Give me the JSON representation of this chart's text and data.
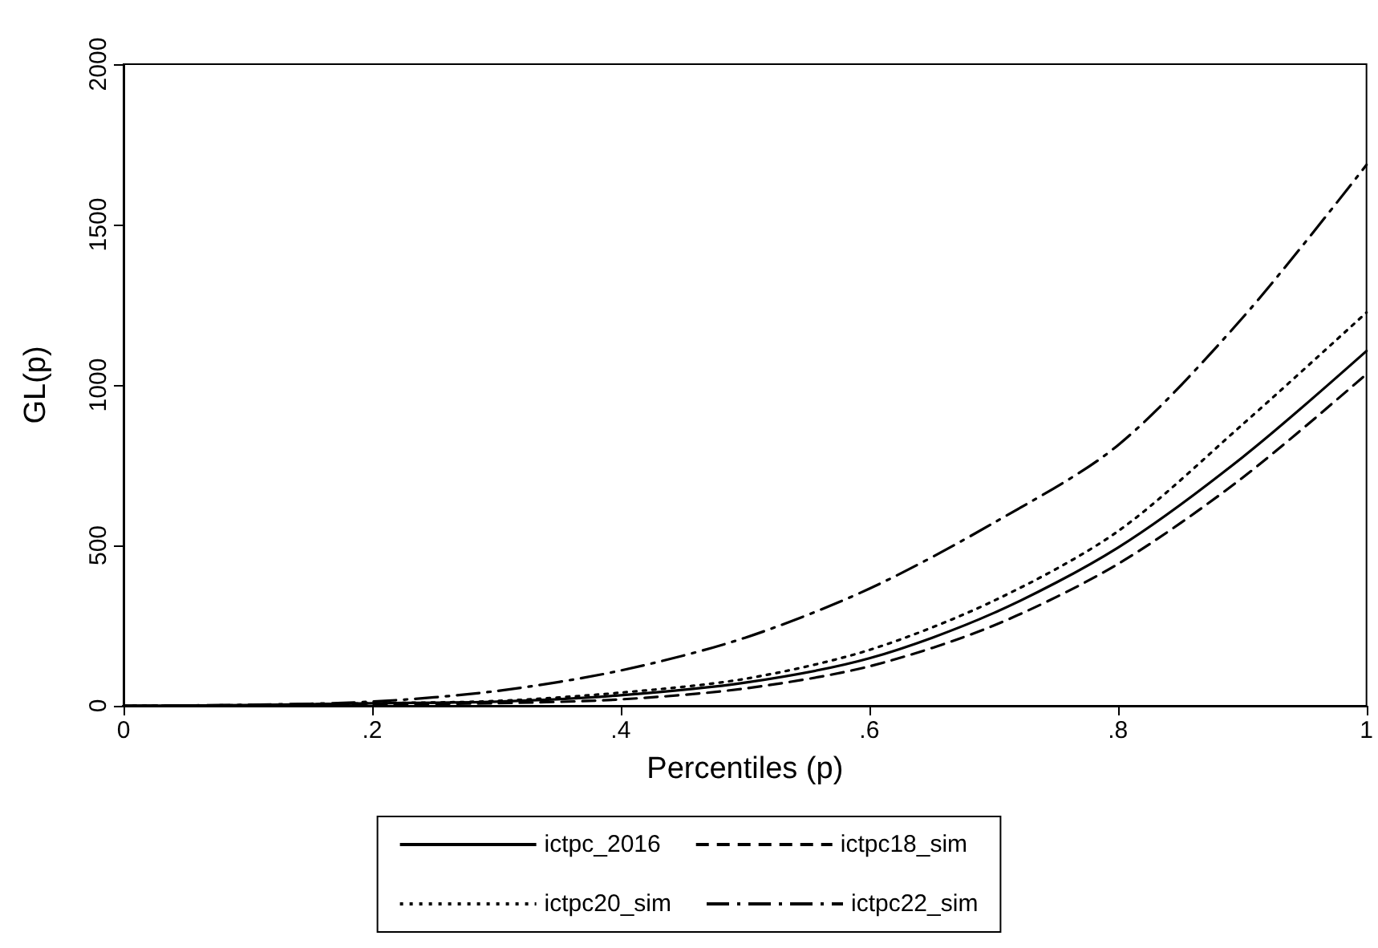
{
  "chart_data": {
    "type": "line",
    "xlabel": "Percentiles (p)",
    "ylabel": "GL(p)",
    "xlim": [
      0,
      1
    ],
    "xticks": [
      0,
      {
        "value": 0.2,
        "label": ".2"
      },
      {
        "value": 0.4,
        "label": ".4"
      },
      {
        "value": 0.6,
        "label": ".6"
      },
      {
        "value": 0.8,
        "label": ".8"
      },
      1
    ],
    "ylim": [
      0,
      2000
    ],
    "yticks": [
      0,
      500,
      1000,
      1500,
      2000
    ],
    "x": [
      0,
      0.1,
      0.2,
      0.3,
      0.4,
      0.5,
      0.6,
      0.7,
      0.8,
      0.9,
      1
    ],
    "series": [
      {
        "name": "ictpc_2016",
        "color": "#000000",
        "line_style": "solid",
        "values": [
          0,
          2,
          8,
          13,
          33,
          72,
          148,
          289,
          493,
          774,
          1106
        ]
      },
      {
        "name": "ictpc18_sim",
        "color": "#000000",
        "line_style": "dashed",
        "values": [
          0,
          1,
          5,
          8,
          20,
          54,
          123,
          250,
          442,
          710,
          1034
        ]
      },
      {
        "name": "ictpc20_sim",
        "color": "#000000",
        "line_style": "dotted",
        "values": [
          0,
          2,
          8,
          15,
          41,
          84,
          174,
          327,
          544,
          876,
          1226
        ]
      },
      {
        "name": "ictpc22_sim",
        "color": "#000000",
        "line_style": "dashdot",
        "values": [
          0,
          3,
          13,
          46,
          110,
          212,
          365,
          570,
          812,
          1208,
          1686
        ]
      }
    ],
    "grid": false,
    "legend": "bottom",
    "marker": "none"
  }
}
